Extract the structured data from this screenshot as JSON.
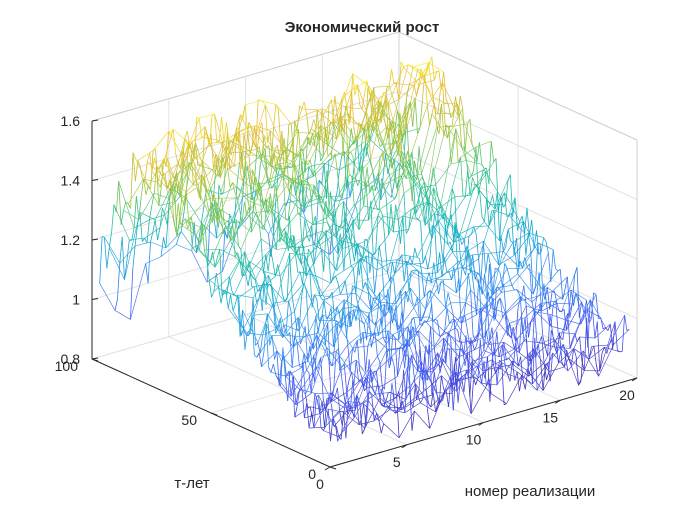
{
  "chart_data": {
    "type": "mesh3d",
    "title": "Экономический рост",
    "xlabel": "номер реализации",
    "ylabel": "т-лет",
    "zlabel": "",
    "xlim": [
      0,
      20
    ],
    "ylim": [
      0,
      100
    ],
    "zlim": [
      0.8,
      1.6
    ],
    "xticks": [
      "0",
      "5",
      "10",
      "15",
      "20"
    ],
    "yticks": [
      "0",
      "50",
      "100"
    ],
    "zticks": [
      "0.8",
      "1",
      "1.2",
      "1.4",
      "1.6"
    ],
    "grid": true,
    "box": true,
    "colormap": "parula",
    "colormap_colors": [
      "#3e26a8",
      "#4659f5",
      "#2d8fef",
      "#14b0c8",
      "#31c28f",
      "#9bc63b",
      "#e8ba2f",
      "#f9fb15"
    ],
    "series_summary": {
      "rows_realizations": 20,
      "columns_years": 100,
      "start_value_at_t100": [
        0.95,
        1.2
      ],
      "peak_values": [
        1.45,
        1.65
      ],
      "end_value_at_t0": [
        0.9,
        1.0
      ]
    }
  }
}
